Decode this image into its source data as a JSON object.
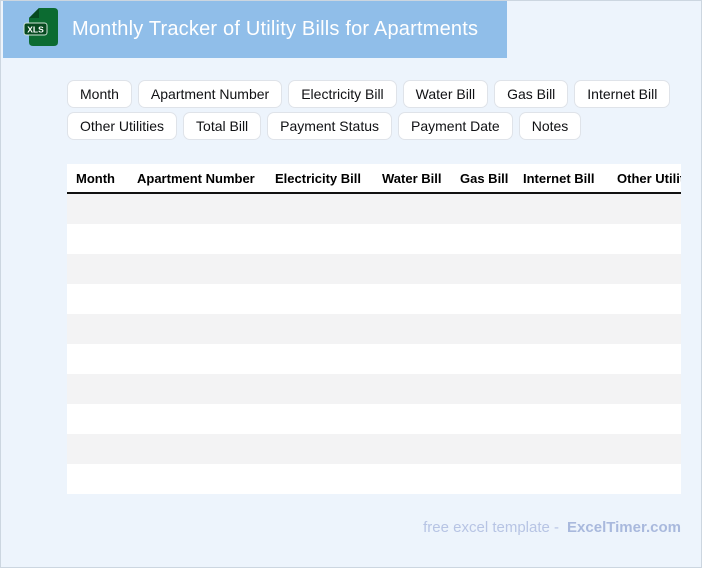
{
  "header": {
    "title": "Monthly Tracker of Utility Bills for Apartments",
    "icon_label": "XLS"
  },
  "chips": {
    "items": [
      "Month",
      "Apartment Number",
      "Electricity Bill",
      "Water Bill",
      "Gas Bill",
      "Internet Bill",
      "Other Utilities",
      "Total Bill",
      "Payment Status",
      "Payment Date",
      "Notes"
    ]
  },
  "table": {
    "columns": [
      "Month",
      "Apartment Number",
      "Electricity Bill",
      "Water Bill",
      "Gas Bill",
      "Internet Bill",
      "Other Utilities"
    ],
    "row_count": 10,
    "rows": []
  },
  "footer": {
    "credit_text": "free excel template -",
    "brand": "ExcelTimer.com"
  },
  "colors": {
    "banner": "#90bee9",
    "page_bg": "#edf4fc",
    "stripe": "#f3f3f4",
    "chip_border": "#dfe3e9",
    "header_rule": "#111111",
    "footer_text": "#b7c4e4",
    "brand_text": "#a9b9dd",
    "icon_green": "#0c6b31",
    "icon_label_bg": "#07491f"
  }
}
